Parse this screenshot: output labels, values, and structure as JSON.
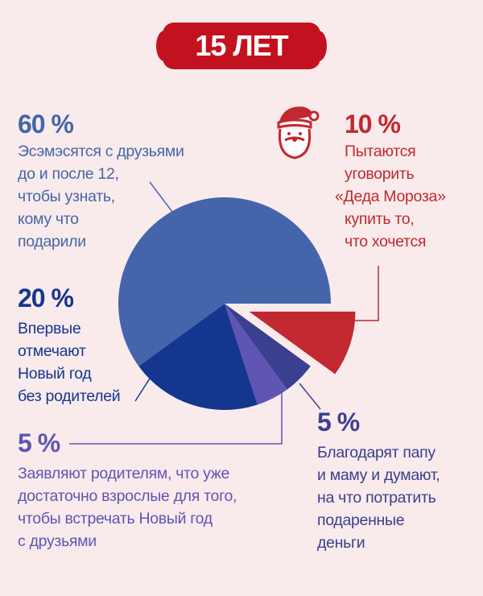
{
  "header": {
    "title": "15 ЛЕТ"
  },
  "colors": {
    "background": "#f9ebec",
    "blue": "#4565ab",
    "navy": "#15368f",
    "purple": "#5f55b5",
    "dark_purple": "#3a3f8f",
    "red": "#c1282f"
  },
  "icons": {
    "santa": "santa-claus-icon"
  },
  "chart_data": {
    "type": "pie",
    "title": "15 ЛЕТ",
    "slices": [
      {
        "value": 10,
        "label": "10 %",
        "text": "Пытаются «уговорить «Деда Мороза» купить то, что хочется",
        "color": "#c1282f",
        "exploded": true
      },
      {
        "value": 5,
        "label": "5 %",
        "text": "Благодарят папу и маму и думают, на что потратить подаренные деньги",
        "color": "#3a3f8f"
      },
      {
        "value": 5,
        "label": "5 %",
        "text": "Заявляют родителям, что уже достаточно взрослые для того, чтобы встречать Новый год с друзьями",
        "color": "#5f55b5"
      },
      {
        "value": 20,
        "label": "20 %",
        "text": "Впервые отмечают Новый год без родителей",
        "color": "#15368f"
      },
      {
        "value": 60,
        "label": "60 %",
        "text": "Эсэмэсятся с друзьями до и после 12, чтобы узнать, кому что подарили",
        "color": "#4565ab"
      }
    ]
  },
  "labels": {
    "s60": {
      "pct": "60 %",
      "lines": [
        "Эсэмэсятся с друзьями",
        "до и после 12,",
        "чтобы узнать,",
        "кому что",
        "подарили"
      ]
    },
    "s10": {
      "pct": "10 %",
      "lines": [
        "Пытаются",
        "уговорить",
        "«Деда Мороза»",
        "купить то,",
        "что хочется"
      ]
    },
    "s20": {
      "pct": "20 %",
      "lines": [
        "Впервые",
        "отмечают",
        "Новый год",
        "без родителей"
      ]
    },
    "s5a": {
      "pct": "5 %",
      "lines": [
        "Заявляют родителям, что уже",
        "достаточно взрослые для того,",
        "чтобы встречать Новый год",
        "с друзьями"
      ]
    },
    "s5b": {
      "pct": "5 %",
      "lines": [
        "Благодарят папу",
        "и маму и думают,",
        "на что потратить",
        "подаренные",
        "деньги"
      ]
    }
  }
}
